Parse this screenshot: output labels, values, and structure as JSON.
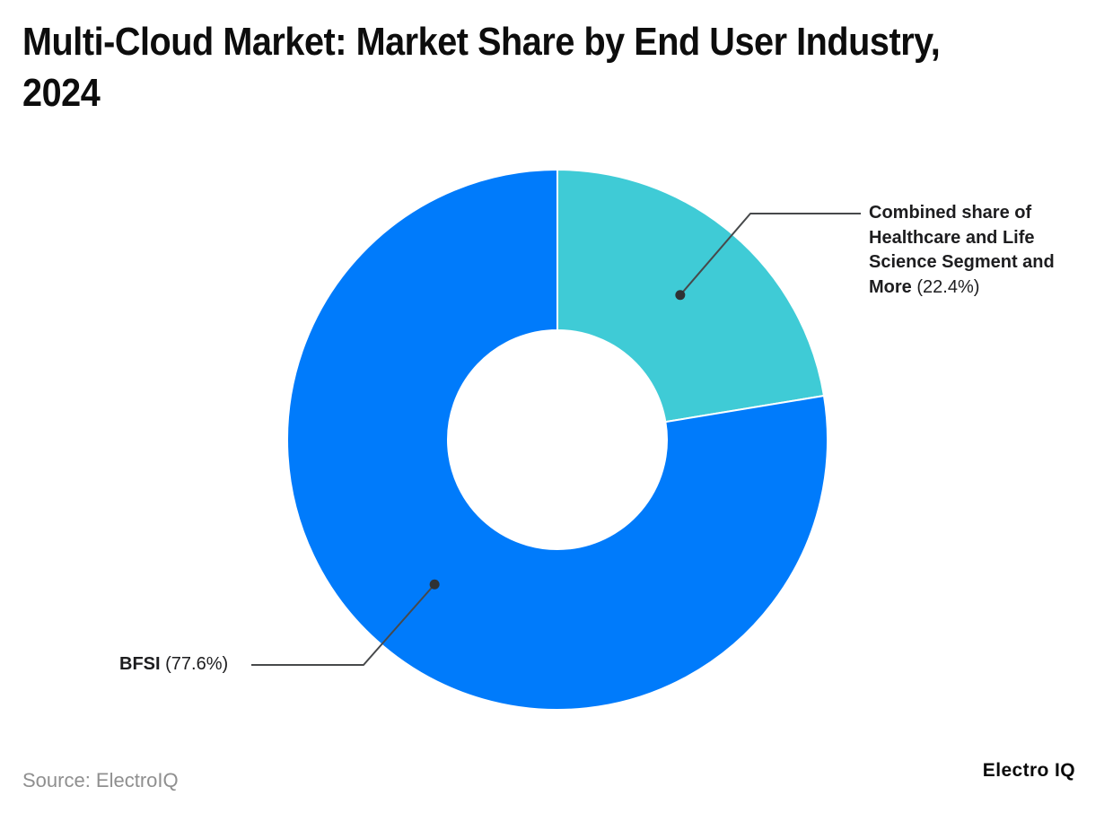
{
  "header": {
    "title_line1": "Multi-Cloud Market: Market Share by End User Industry,",
    "title_line2": "2024"
  },
  "callouts": {
    "healthcare": {
      "bold_lines": [
        "Combined share of",
        "Healthcare and Life",
        "Science Segment and",
        "More"
      ],
      "value": "(22.4%)"
    },
    "bfsi": {
      "bold": "BFSI",
      "value": "(77.6%)"
    }
  },
  "footer": {
    "source": "Source: ElectroIQ",
    "brand": "Electro IQ"
  },
  "chart_data": {
    "type": "pie",
    "subtype": "donut",
    "title": "Multi-Cloud Market: Market Share by End User Industry, 2024",
    "categories": [
      "Combined share of Healthcare and Life Science Segment and More",
      "BFSI"
    ],
    "values": [
      22.4,
      77.6
    ],
    "unit": "%",
    "colors": [
      "#3fcbd6",
      "#007bfb"
    ],
    "start_angle_deg": 0,
    "direction": "clockwise",
    "inner_radius_ratio": 0.405,
    "legend_position": "none",
    "slice_separator_color": "#ffffff",
    "connector_color": "#47494b",
    "dot_color": "#2f3234",
    "background": "#ffffff"
  }
}
